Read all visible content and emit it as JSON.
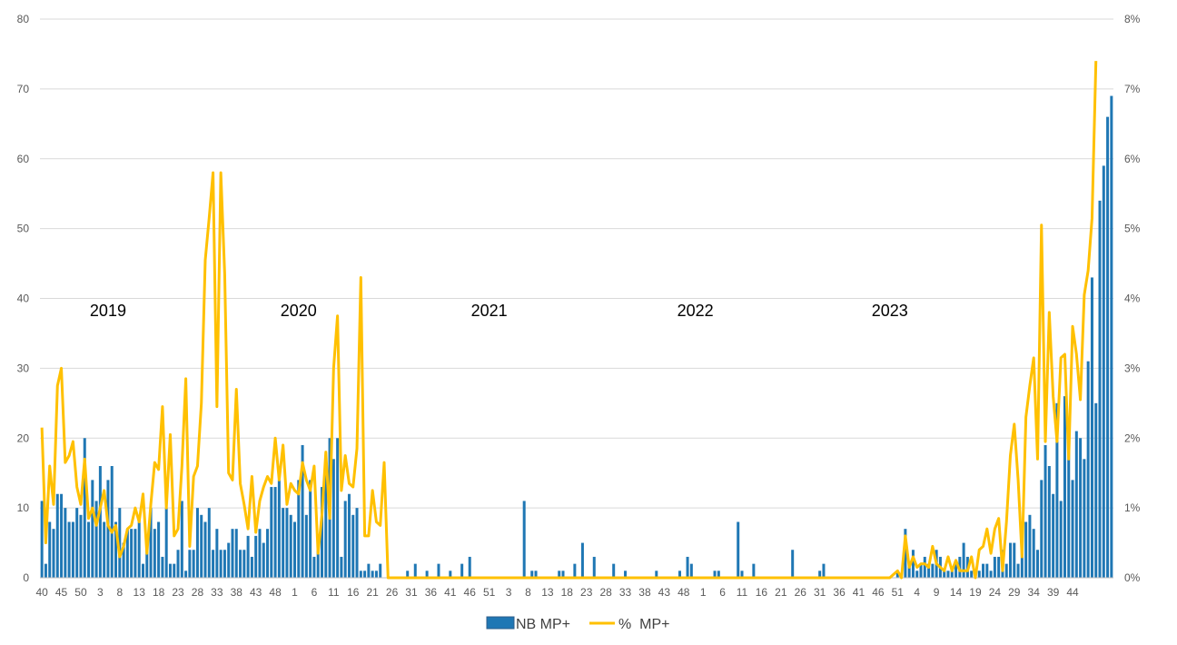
{
  "chart_data": {
    "type": "bar",
    "colors": {
      "bars": "#1f77b4",
      "line": "#ffc000",
      "grid": "#d9d9d9"
    },
    "ylim": [
      0,
      80
    ],
    "y2lim": [
      0,
      8
    ],
    "y_ticks": [
      "0",
      "10",
      "20",
      "30",
      "40",
      "50",
      "60",
      "70",
      "80"
    ],
    "y2_ticks": [
      "0%",
      "1%",
      "2%",
      "3%",
      "4%",
      "5%",
      "6%",
      "7%",
      "8%"
    ],
    "grid": true,
    "legend_position": "bottom",
    "x_tick_labels": [
      {
        "week": 0,
        "label": "40"
      },
      {
        "week": 5,
        "label": "45"
      },
      {
        "week": 10,
        "label": "50"
      },
      {
        "week": 15,
        "label": "3"
      },
      {
        "week": 20,
        "label": "8"
      },
      {
        "week": 25,
        "label": "13"
      },
      {
        "week": 30,
        "label": "18"
      },
      {
        "week": 35,
        "label": "23"
      },
      {
        "week": 40,
        "label": "28"
      },
      {
        "week": 45,
        "label": "33"
      },
      {
        "week": 50,
        "label": "38"
      },
      {
        "week": 55,
        "label": "43"
      },
      {
        "week": 60,
        "label": "48"
      },
      {
        "week": 65,
        "label": "1"
      },
      {
        "week": 70,
        "label": "6"
      },
      {
        "week": 75,
        "label": "11"
      },
      {
        "week": 80,
        "label": "16"
      },
      {
        "week": 85,
        "label": "21"
      },
      {
        "week": 90,
        "label": "26"
      },
      {
        "week": 95,
        "label": "31"
      },
      {
        "week": 100,
        "label": "36"
      },
      {
        "week": 105,
        "label": "41"
      },
      {
        "week": 110,
        "label": "46"
      },
      {
        "week": 115,
        "label": "51"
      },
      {
        "week": 120,
        "label": "3"
      },
      {
        "week": 125,
        "label": "8"
      },
      {
        "week": 130,
        "label": "13"
      },
      {
        "week": 135,
        "label": "18"
      },
      {
        "week": 140,
        "label": "23"
      },
      {
        "week": 145,
        "label": "28"
      },
      {
        "week": 150,
        "label": "33"
      },
      {
        "week": 155,
        "label": "38"
      },
      {
        "week": 160,
        "label": "43"
      },
      {
        "week": 165,
        "label": "48"
      },
      {
        "week": 170,
        "label": "1"
      },
      {
        "week": 175,
        "label": "6"
      },
      {
        "week": 180,
        "label": "11"
      },
      {
        "week": 185,
        "label": "16"
      },
      {
        "week": 190,
        "label": "21"
      },
      {
        "week": 195,
        "label": "26"
      },
      {
        "week": 200,
        "label": "31"
      },
      {
        "week": 205,
        "label": "36"
      },
      {
        "week": 210,
        "label": "41"
      },
      {
        "week": 215,
        "label": "46"
      },
      {
        "week": 220,
        "label": "51"
      },
      {
        "week": 225,
        "label": "4"
      },
      {
        "week": 230,
        "label": "9"
      },
      {
        "week": 235,
        "label": "14"
      },
      {
        "week": 240,
        "label": "19"
      },
      {
        "week": 245,
        "label": "24"
      },
      {
        "week": 250,
        "label": "29"
      },
      {
        "week": 255,
        "label": "34"
      },
      {
        "week": 260,
        "label": "39"
      },
      {
        "week": 265,
        "label": "44"
      }
    ],
    "year_labels": [
      {
        "week": 17,
        "label": "2019"
      },
      {
        "week": 66,
        "label": "2020"
      },
      {
        "week": 115,
        "label": "2021"
      },
      {
        "week": 168,
        "label": "2022"
      },
      {
        "week": 218,
        "label": "2023"
      }
    ],
    "series": [
      {
        "name": "NB MP+",
        "kind": "bar",
        "values": [
          11,
          2,
          8,
          7,
          12,
          12,
          10,
          8,
          8,
          10,
          9,
          20,
          8,
          14,
          11,
          16,
          8,
          14,
          16,
          8,
          10,
          5,
          7,
          7,
          7,
          9,
          2,
          5,
          10,
          7,
          8,
          3,
          10,
          2,
          2,
          4,
          11,
          1,
          4,
          4,
          10,
          9,
          8,
          10,
          4,
          7,
          4,
          4,
          5,
          7,
          7,
          4,
          4,
          6,
          3,
          6,
          7,
          5,
          7,
          13,
          13,
          14,
          10,
          10,
          9,
          8,
          14,
          19,
          9,
          14,
          3,
          5,
          13,
          16,
          20,
          17,
          20,
          3,
          11,
          12,
          9,
          10,
          1,
          1,
          2,
          1,
          1,
          2,
          0,
          0,
          0,
          0,
          0,
          0,
          1,
          0,
          2,
          0,
          0,
          1,
          0,
          0,
          2,
          0,
          0,
          1,
          0,
          0,
          2,
          0,
          3,
          0,
          0,
          0,
          0,
          0,
          0,
          0,
          0,
          0,
          0,
          0,
          0,
          0,
          11,
          0,
          1,
          1,
          0,
          0,
          0,
          0,
          0,
          1,
          1,
          0,
          0,
          2,
          0,
          5,
          0,
          0,
          3,
          0,
          0,
          0,
          0,
          2,
          0,
          0,
          1,
          0,
          0,
          0,
          0,
          0,
          0,
          0,
          1,
          0,
          0,
          0,
          0,
          0,
          1,
          0,
          3,
          2,
          0,
          0,
          0,
          0,
          0,
          1,
          1,
          0,
          0,
          0,
          0,
          8,
          1,
          0,
          0,
          2,
          0,
          0,
          0,
          0,
          0,
          0,
          0,
          0,
          0,
          4,
          0,
          0,
          0,
          0,
          0,
          0,
          1,
          2,
          0,
          0,
          0,
          0,
          0,
          0,
          0,
          0,
          0,
          0,
          0,
          0,
          0,
          0,
          0,
          0,
          0,
          0,
          1,
          0,
          7,
          2,
          4,
          1,
          2,
          3,
          2,
          2,
          4,
          3,
          1,
          1,
          1,
          2,
          3,
          5,
          3,
          1,
          1,
          1,
          2,
          2,
          1,
          3,
          3,
          4,
          2,
          5,
          5,
          2,
          5,
          8,
          9,
          7,
          4,
          14,
          19,
          16,
          12,
          25,
          11,
          26,
          21,
          14,
          21,
          20,
          17,
          31,
          43,
          25,
          54,
          59,
          66,
          69
        ]
      },
      {
        "name": "%  MP+",
        "kind": "line",
        "values": [
          2.15,
          0.5,
          1.6,
          1.05,
          2.75,
          3.0,
          1.65,
          1.75,
          1.95,
          1.3,
          1.05,
          1.7,
          0.85,
          1.0,
          0.75,
          1.0,
          1.25,
          0.75,
          0.65,
          0.75,
          0.3,
          0.45,
          0.7,
          0.75,
          1.0,
          0.8,
          1.2,
          0.35,
          1.05,
          1.65,
          1.55,
          2.45,
          1.0,
          2.05,
          0.6,
          0.7,
          1.6,
          2.85,
          0.45,
          1.45,
          1.6,
          2.5,
          4.55,
          5.15,
          5.8,
          2.45,
          5.8,
          4.35,
          1.5,
          1.4,
          2.7,
          1.35,
          1.05,
          0.7,
          1.45,
          0.65,
          1.1,
          1.3,
          1.45,
          1.35,
          2.0,
          1.4,
          1.9,
          1.05,
          1.35,
          1.25,
          1.2,
          1.65,
          1.4,
          1.25,
          1.6,
          0.35,
          0.9,
          1.8,
          0.85,
          3.0,
          3.75,
          1.25,
          1.75,
          1.35,
          1.3,
          1.85,
          4.3,
          0.6,
          0.6,
          1.25,
          0.8,
          0.75,
          1.65,
          0.0,
          0,
          0,
          0,
          0,
          0,
          0,
          0,
          0,
          0,
          0,
          0,
          0,
          0,
          0,
          0,
          0,
          0,
          0,
          0,
          0,
          0,
          0,
          0,
          0,
          0,
          0,
          0,
          0,
          0,
          0,
          0,
          0,
          0,
          0,
          0,
          0,
          0,
          0,
          0,
          0,
          0,
          0,
          0,
          0,
          0,
          0,
          0,
          0,
          0,
          0,
          0,
          0,
          0,
          0,
          0,
          0,
          0,
          0,
          0,
          0,
          0,
          0,
          0,
          0,
          0,
          0,
          0,
          0,
          0,
          0,
          0,
          0,
          0,
          0,
          0,
          0,
          0,
          0,
          0,
          0,
          0,
          0,
          0,
          0,
          0,
          0,
          0,
          0,
          0,
          0,
          0,
          0,
          0,
          0,
          0,
          0,
          0,
          0,
          0,
          0,
          0,
          0,
          0,
          0,
          0,
          0,
          0,
          0,
          0,
          0,
          0,
          0,
          0,
          0,
          0,
          0,
          0,
          0,
          0,
          0,
          0,
          0,
          0,
          0,
          0,
          0,
          0,
          0,
          0,
          0.05,
          0.1,
          0.0,
          0.6,
          0.15,
          0.3,
          0.15,
          0.2,
          0.2,
          0.15,
          0.45,
          0.2,
          0.15,
          0.1,
          0.3,
          0.1,
          0.25,
          0.1,
          0.1,
          0.1,
          0.3,
          0.0,
          0.4,
          0.45,
          0.7,
          0.35,
          0.7,
          0.85,
          0.1,
          0.8,
          1.75,
          2.2,
          1.4,
          0.3,
          2.3,
          2.75,
          3.15,
          1.7,
          5.05,
          1.95,
          3.8,
          2.6,
          1.95,
          3.15,
          3.2,
          1.7,
          3.6,
          3.2,
          2.55,
          4.05,
          4.4,
          5.15,
          7.4
        ]
      }
    ]
  }
}
